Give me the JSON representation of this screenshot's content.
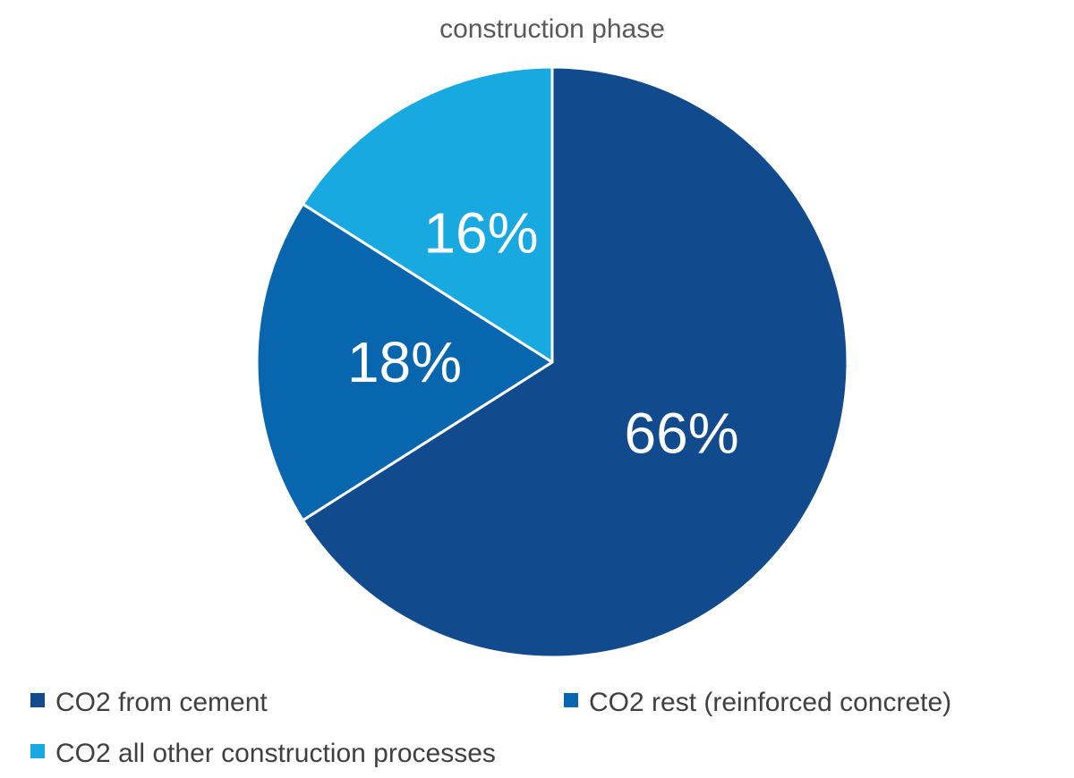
{
  "chart_data": {
    "type": "pie",
    "title": "construction phase",
    "categories": [
      "CO2 from cement",
      "CO2 rest (reinforced concrete)",
      "CO2 all other construction processes"
    ],
    "values": [
      66,
      18,
      16
    ],
    "labels": [
      "66%",
      "18%",
      "16%"
    ],
    "colors": [
      "#124A8E",
      "#0766AE",
      "#19A9E1"
    ],
    "start_angle_deg": 0,
    "direction": "clockwise",
    "legend_position": "bottom"
  }
}
